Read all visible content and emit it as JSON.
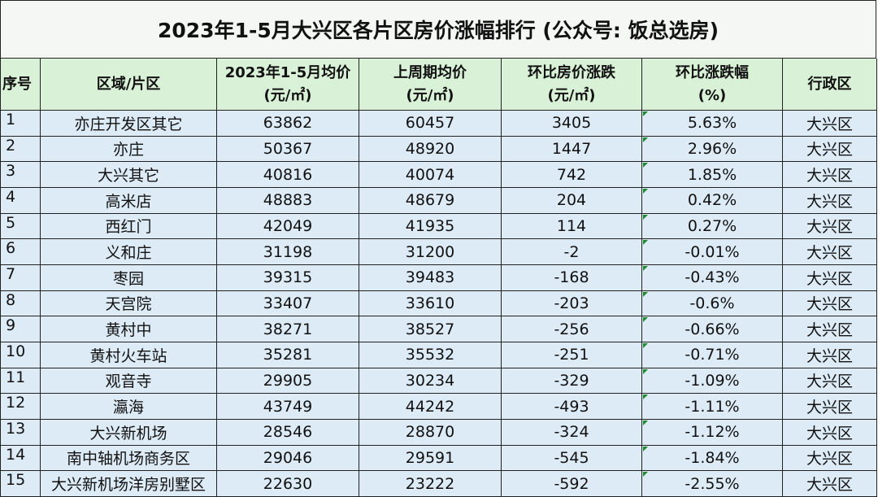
{
  "title": "2023年1-5月大兴区各片区房价涨幅排行 (公众号: 饭总选房)",
  "table": {
    "headers": [
      [
        "序号"
      ],
      [
        "区域/片区"
      ],
      [
        "2023年1-5月均价",
        "(元/㎡)"
      ],
      [
        "上周期均价",
        "(元/㎡)"
      ],
      [
        "环比房价涨跌",
        "(元/㎡)"
      ],
      [
        "环比涨跌幅",
        "(%)"
      ],
      [
        "行政区"
      ]
    ],
    "rows": [
      [
        1,
        "亦庄开发区其它",
        63862,
        60457,
        3405,
        "5.63%",
        "大兴区"
      ],
      [
        2,
        "亦庄",
        50367,
        48920,
        1447,
        "2.96%",
        "大兴区"
      ],
      [
        3,
        "大兴其它",
        40816,
        40074,
        742,
        "1.85%",
        "大兴区"
      ],
      [
        4,
        "高米店",
        48883,
        48679,
        204,
        "0.42%",
        "大兴区"
      ],
      [
        5,
        "西红门",
        42049,
        41935,
        114,
        "0.27%",
        "大兴区"
      ],
      [
        6,
        "义和庄",
        31198,
        31200,
        -2,
        "-0.01%",
        "大兴区"
      ],
      [
        7,
        "枣园",
        39315,
        39483,
        -168,
        "-0.43%",
        "大兴区"
      ],
      [
        8,
        "天宫院",
        33407,
        33610,
        -203,
        "-0.6%",
        "大兴区"
      ],
      [
        9,
        "黄村中",
        38271,
        38527,
        -256,
        "-0.66%",
        "大兴区"
      ],
      [
        10,
        "黄村火车站",
        35281,
        35532,
        -251,
        "-0.71%",
        "大兴区"
      ],
      [
        11,
        "观音寺",
        29905,
        30234,
        -329,
        "-1.09%",
        "大兴区"
      ],
      [
        12,
        "瀛海",
        43749,
        44242,
        -493,
        "-1.11%",
        "大兴区"
      ],
      [
        13,
        "大兴新机场",
        28546,
        28870,
        -324,
        "-1.12%",
        "大兴区"
      ],
      [
        14,
        "南中轴机场商务区",
        29046,
        29591,
        -545,
        "-1.84%",
        "大兴区"
      ],
      [
        15,
        "大兴新机场洋房别墅区",
        22630,
        23222,
        -592,
        "-2.55%",
        "大兴区"
      ]
    ]
  }
}
